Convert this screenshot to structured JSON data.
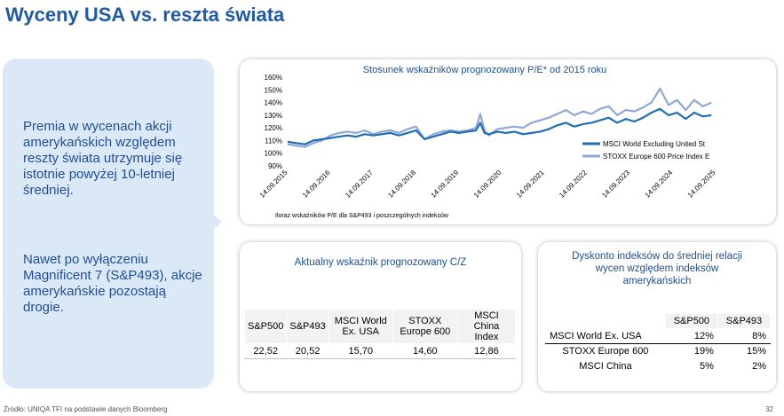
{
  "slide": {
    "title": "Wyceny USA vs. reszta świata",
    "left_text_1": "Premia w wycenach akcji amerykańskich względem reszty świata utrzymuje się istotnie powyżej 10-letniej średniej.",
    "left_text_2": "Nawet po wyłączeniu Magnificent 7 (S&P493), akcje amerykańskie pozostają drogie.",
    "footer": "Źródło: UNIQA TFI na podstawie danych Bloomberg",
    "page_number": "32"
  },
  "chart_data": [
    {
      "type": "line",
      "title": "Stosunek wskaźników prognozowany P/E* od 2015 roku",
      "footnote": "Iloraz wskaźników P/E dla S&P493 i poszczególnych indeksów",
      "xlabel": "",
      "ylabel": "",
      "x_ticks": [
        "14.09.2015",
        "14.09.2016",
        "14.09.2017",
        "14.09.2018",
        "14.09.2019",
        "14.09.2020",
        "14.09.2021",
        "14.09.2022",
        "14.09.2023",
        "14.09.2024",
        "14.09.2025"
      ],
      "y_ticks": [
        "160%",
        "150%",
        "140%",
        "130%",
        "120%",
        "110%",
        "100%",
        "90%"
      ],
      "ylim": [
        90,
        160
      ],
      "xlim": [
        2015.7,
        2025.7
      ],
      "grid": false,
      "legend": "right",
      "series": [
        {
          "name": "MSCI World Excluding United St",
          "color": "#1f6eb5",
          "x": [
            2015.7,
            2015.9,
            2016.1,
            2016.3,
            2016.5,
            2016.7,
            2016.9,
            2017.1,
            2017.3,
            2017.5,
            2017.7,
            2017.9,
            2018.1,
            2018.3,
            2018.5,
            2018.7,
            2018.9,
            2019.1,
            2019.3,
            2019.5,
            2019.7,
            2019.9,
            2020.1,
            2020.2,
            2020.3,
            2020.4,
            2020.6,
            2020.8,
            2021.0,
            2021.2,
            2021.4,
            2021.6,
            2021.8,
            2022.0,
            2022.2,
            2022.4,
            2022.6,
            2022.8,
            2023.0,
            2023.2,
            2023.4,
            2023.6,
            2023.8,
            2024.0,
            2024.2,
            2024.4,
            2024.6,
            2024.8,
            2025.0,
            2025.2,
            2025.4,
            2025.6
          ],
          "values": [
            109,
            108,
            107,
            110,
            111,
            112,
            113,
            114,
            113,
            115,
            114,
            115,
            116,
            114,
            116,
            118,
            111,
            113,
            115,
            117,
            116,
            117,
            118,
            124,
            116,
            115,
            117,
            116,
            117,
            115,
            116,
            117,
            119,
            122,
            124,
            121,
            123,
            124,
            126,
            128,
            124,
            127,
            125,
            128,
            132,
            135,
            130,
            132,
            127,
            132,
            129,
            130
          ]
        },
        {
          "name": "STOXX Europe 600 Price Index E",
          "color": "#8ea8d8",
          "x": [
            2015.7,
            2015.9,
            2016.1,
            2016.3,
            2016.5,
            2016.7,
            2016.9,
            2017.1,
            2017.3,
            2017.5,
            2017.7,
            2017.9,
            2018.1,
            2018.3,
            2018.5,
            2018.7,
            2018.9,
            2019.1,
            2019.3,
            2019.5,
            2019.7,
            2019.9,
            2020.1,
            2020.2,
            2020.3,
            2020.4,
            2020.6,
            2020.8,
            2021.0,
            2021.2,
            2021.4,
            2021.6,
            2021.8,
            2022.0,
            2022.2,
            2022.4,
            2022.6,
            2022.8,
            2023.0,
            2023.2,
            2023.4,
            2023.6,
            2023.8,
            2024.0,
            2024.2,
            2024.4,
            2024.6,
            2024.8,
            2025.0,
            2025.2,
            2025.4,
            2025.6
          ],
          "values": [
            107,
            106,
            105,
            108,
            110,
            114,
            116,
            117,
            116,
            118,
            115,
            117,
            118,
            116,
            119,
            121,
            111,
            115,
            117,
            118,
            117,
            118,
            120,
            131,
            118,
            114,
            119,
            120,
            121,
            120,
            124,
            126,
            128,
            131,
            134,
            130,
            133,
            131,
            135,
            137,
            130,
            134,
            133,
            136,
            140,
            151,
            138,
            142,
            134,
            142,
            137,
            140
          ]
        }
      ]
    },
    {
      "type": "table",
      "title": "Aktualny wskaźnik prognozowany C/Z",
      "columns": [
        "S&P500",
        "S&P493",
        "MSCI World Ex. USA",
        "STOXX Europe 600",
        "MSCI China Index"
      ],
      "values": [
        "22,52",
        "20,52",
        "15,70",
        "14,60",
        "12,86"
      ]
    },
    {
      "type": "table",
      "title": "Dyskonto indeksów do średniej relacji wycen względem indeksów amerykańskich",
      "columns": [
        "S&P500",
        "S&P493"
      ],
      "rows": [
        {
          "label": "MSCI World Ex. USA",
          "values": [
            "12%",
            "8%"
          ]
        },
        {
          "label": "STOXX Europe 600",
          "values": [
            "19%",
            "15%"
          ]
        },
        {
          "label": "MSCI China",
          "values": [
            "5%",
            "2%"
          ]
        }
      ]
    }
  ]
}
